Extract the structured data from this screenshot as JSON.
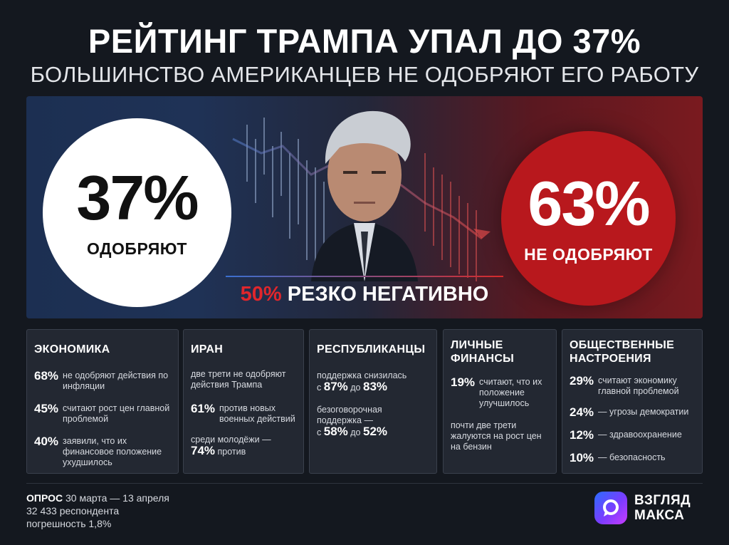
{
  "header": {
    "title": "РЕЙТИНГ ТРАМПА УПАЛ ДО 37%",
    "subtitle": "БОЛЬШИНСТВО АМЕРИКАНЦЕВ НЕ ОДОБРЯЮТ ЕГО РАБОТУ"
  },
  "hero": {
    "approve_pct": "37%",
    "approve_label": "ОДОБРЯЮТ",
    "disapprove_pct": "63%",
    "disapprove_label": "НЕ ОДОБРЯЮТ",
    "strong_pct": "50%",
    "strong_label": "РЕЗКО НЕГАТИВНО",
    "approve_color": "#ffffff",
    "disapprove_color": "#b8181d"
  },
  "cards": {
    "economy": {
      "title": "ЭКОНОМИКА",
      "items": [
        {
          "num": "68%",
          "text": "не одобряют действия по инфляции"
        },
        {
          "num": "45%",
          "text": "считают рост цен главной проблемой"
        },
        {
          "num": "40%",
          "text": "заявили, что их финансовое положение ухудшилось"
        }
      ]
    },
    "iran": {
      "title": "ИРАН",
      "intro": "две трети не одобряют действия Трампа",
      "num1": "61%",
      "text1": "против новых военных действий",
      "youth_prefix": "среди молодёжи —",
      "num2": "74%",
      "text2": "против"
    },
    "republicans": {
      "title": "РЕСПУБЛИКАНЦЫ",
      "line1": "поддержка снизилась",
      "from_word": "с",
      "from1": "87%",
      "to_word": "до",
      "to1": "83%",
      "line2a": "безоговорочная",
      "line2b": "поддержка —",
      "from2": "58%",
      "to2": "52%"
    },
    "finances": {
      "title_a": "ЛИЧНЫЕ",
      "title_b": "ФИНАНСЫ",
      "num1": "19%",
      "text1": "считают, что их положение улучшилось",
      "text2": "почти две трети жалуются на рост цен на бензин"
    },
    "mood": {
      "title_a": "ОБЩЕСТВЕННЫЕ",
      "title_b": "НАСТРОЕНИЯ",
      "items": [
        {
          "num": "29%",
          "text": "считают экономику главной проблемой"
        },
        {
          "num": "24%",
          "text": "— угрозы демократии"
        },
        {
          "num": "12%",
          "text": "— здравоохранение"
        },
        {
          "num": "10%",
          "text": "— безопасность"
        }
      ]
    }
  },
  "footer": {
    "poll_label": "ОПРОС",
    "poll_dates": "30 марта — 13 апреля",
    "respondents": "32 433 респондента",
    "margin": "погрешность 1,8%"
  },
  "logo": {
    "line1": "ВЗГЛЯД",
    "line2": "МАКСА"
  }
}
